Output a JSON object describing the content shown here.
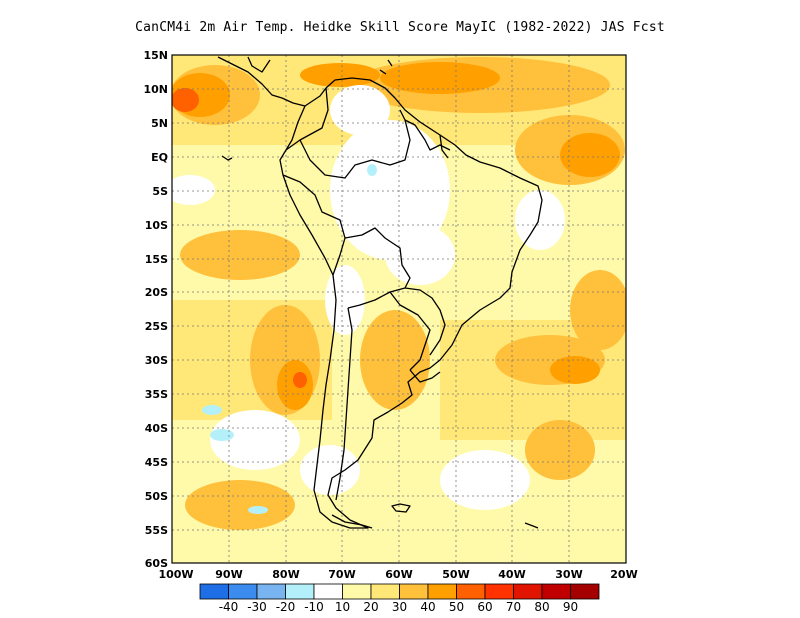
{
  "title": "CanCM4i  2m Air Temp. Heidke Skill Score MayIC (1982-2022) JAS Fcst",
  "axes": {
    "lat_ticks": [
      "15N",
      "10N",
      "5N",
      "EQ",
      "5S",
      "10S",
      "15S",
      "20S",
      "25S",
      "30S",
      "35S",
      "40S",
      "45S",
      "50S",
      "55S",
      "60S"
    ],
    "lon_ticks": [
      "100W",
      "90W",
      "80W",
      "70W",
      "60W",
      "50W",
      "40W",
      "30W",
      "20W"
    ]
  },
  "legend": {
    "labels": [
      "-40",
      "-30",
      "-20",
      "-10",
      "10",
      "20",
      "30",
      "40",
      "50",
      "60",
      "70",
      "80",
      "90"
    ],
    "colors": [
      "#1e6ee6",
      "#3c8cf0",
      "#78b4f0",
      "#b4f0fa",
      "#ffffff",
      "#fffaaa",
      "#ffe878",
      "#ffc03c",
      "#ffa000",
      "#ff6000",
      "#ff3200",
      "#e11400",
      "#c00000",
      "#a50000"
    ]
  },
  "colors": {
    "land_outline": "#000000",
    "grid": "#555555",
    "frame": "#000000"
  }
}
